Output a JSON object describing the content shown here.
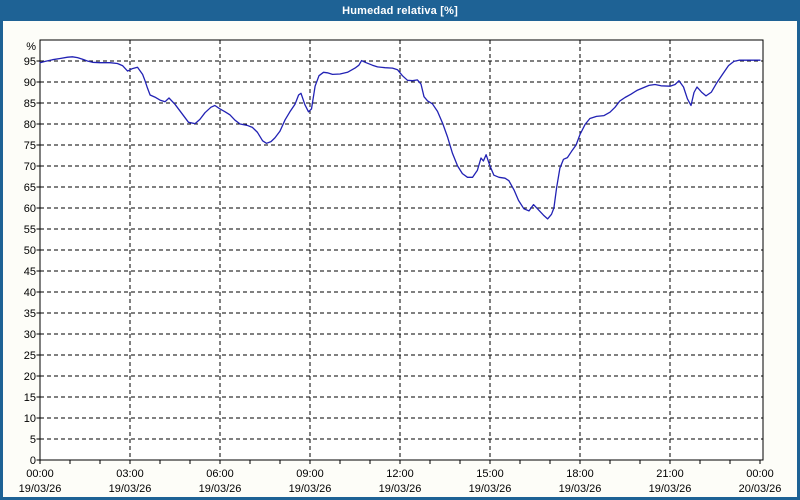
{
  "window": {
    "title": "Humedad relativa [%]",
    "title_bar_color": "#1e6295",
    "border_color": "#1e6295",
    "content_bg": "#fdfdf8"
  },
  "chart_data": {
    "type": "line",
    "title": "Humedad relativa [%]",
    "plot_bg": "#ffffff",
    "grid": {
      "dashed": true,
      "color": "#000000",
      "legend": "none"
    },
    "y_axis": {
      "unit_label": "%",
      "min": 0,
      "max": 100,
      "step": 5,
      "labeled_ticks": [
        0,
        5,
        10,
        15,
        20,
        25,
        30,
        35,
        40,
        45,
        50,
        55,
        60,
        65,
        70,
        75,
        80,
        85,
        90,
        95
      ]
    },
    "x_axis": {
      "range_hours": [
        0,
        24
      ],
      "minor_tick_hours": 1,
      "ticks": [
        {
          "t": 0,
          "time": "00:00",
          "date": "19/03/26"
        },
        {
          "t": 3,
          "time": "03:00",
          "date": "19/03/26"
        },
        {
          "t": 6,
          "time": "06:00",
          "date": "19/03/26"
        },
        {
          "t": 9,
          "time": "09:00",
          "date": "19/03/26"
        },
        {
          "t": 12,
          "time": "12:00",
          "date": "19/03/26"
        },
        {
          "t": 15,
          "time": "15:00",
          "date": "19/03/26"
        },
        {
          "t": 18,
          "time": "18:00",
          "date": "19/03/26"
        },
        {
          "t": 21,
          "time": "21:00",
          "date": "19/03/26"
        },
        {
          "t": 24,
          "time": "00:00",
          "date": "20/03/26"
        }
      ],
      "vertical_gridlines_hours": [
        3,
        6,
        9,
        12,
        15,
        18,
        21
      ]
    },
    "series": [
      {
        "name": "Humedad relativa",
        "color": "#2222b4",
        "points": [
          [
            0,
            94.6
          ],
          [
            0.17,
            94.9
          ],
          [
            0.42,
            95.3
          ],
          [
            0.67,
            95.6
          ],
          [
            0.92,
            95.9
          ],
          [
            1.08,
            96
          ],
          [
            1.25,
            95.8
          ],
          [
            1.42,
            95.4
          ],
          [
            1.58,
            95
          ],
          [
            1.75,
            94.7
          ],
          [
            2,
            94.6
          ],
          [
            2.33,
            94.6
          ],
          [
            2.58,
            94.4
          ],
          [
            2.75,
            93.9
          ],
          [
            2.92,
            92.6
          ],
          [
            3.08,
            93.2
          ],
          [
            3.25,
            93.5
          ],
          [
            3.42,
            91.8
          ],
          [
            3.5,
            90.3
          ],
          [
            3.58,
            88.6
          ],
          [
            3.67,
            86.9
          ],
          [
            3.83,
            86.4
          ],
          [
            4,
            85.7
          ],
          [
            4.17,
            85.3
          ],
          [
            4.3,
            86.2
          ],
          [
            4.5,
            84.7
          ],
          [
            4.75,
            82.3
          ],
          [
            4.95,
            80.4
          ],
          [
            5.17,
            80.1
          ],
          [
            5.33,
            81.1
          ],
          [
            5.5,
            82.7
          ],
          [
            5.7,
            84
          ],
          [
            5.83,
            84.4
          ],
          [
            6,
            83.6
          ],
          [
            6.17,
            82.9
          ],
          [
            6.33,
            82.2
          ],
          [
            6.5,
            80.9
          ],
          [
            6.67,
            80
          ],
          [
            6.9,
            79.7
          ],
          [
            7.08,
            79.2
          ],
          [
            7.25,
            78
          ],
          [
            7.42,
            76
          ],
          [
            7.55,
            75.4
          ],
          [
            7.7,
            75.8
          ],
          [
            7.83,
            76.7
          ],
          [
            8,
            78.3
          ],
          [
            8.17,
            81
          ],
          [
            8.33,
            82.9
          ],
          [
            8.5,
            84.7
          ],
          [
            8.62,
            86.9
          ],
          [
            8.7,
            87.3
          ],
          [
            8.83,
            84.6
          ],
          [
            8.95,
            82.9
          ],
          [
            9.05,
            83.6
          ],
          [
            9.17,
            89
          ],
          [
            9.3,
            91.5
          ],
          [
            9.45,
            92.3
          ],
          [
            9.58,
            92.2
          ],
          [
            9.75,
            91.8
          ],
          [
            10,
            91.9
          ],
          [
            10.25,
            92.3
          ],
          [
            10.5,
            93.3
          ],
          [
            10.63,
            94
          ],
          [
            10.72,
            95.1
          ],
          [
            10.87,
            94.6
          ],
          [
            11.08,
            94
          ],
          [
            11.25,
            93.6
          ],
          [
            11.5,
            93.4
          ],
          [
            11.75,
            93.3
          ],
          [
            11.92,
            92.9
          ],
          [
            12.08,
            91.5
          ],
          [
            12.25,
            90.4
          ],
          [
            12.42,
            90.3
          ],
          [
            12.58,
            90.5
          ],
          [
            12.7,
            89.5
          ],
          [
            12.8,
            86.5
          ],
          [
            12.92,
            85.5
          ],
          [
            13.08,
            84.8
          ],
          [
            13.25,
            83
          ],
          [
            13.42,
            80.2
          ],
          [
            13.58,
            77
          ],
          [
            13.75,
            73
          ],
          [
            13.92,
            70
          ],
          [
            14.08,
            68.2
          ],
          [
            14.25,
            67.3
          ],
          [
            14.42,
            67.3
          ],
          [
            14.58,
            69
          ],
          [
            14.7,
            71.9
          ],
          [
            14.78,
            71.2
          ],
          [
            14.87,
            72.7
          ],
          [
            15,
            70
          ],
          [
            15.13,
            67.8
          ],
          [
            15.3,
            67.3
          ],
          [
            15.5,
            67.1
          ],
          [
            15.63,
            66.5
          ],
          [
            15.8,
            64.3
          ],
          [
            15.95,
            61.8
          ],
          [
            16.13,
            59.8
          ],
          [
            16.3,
            59.3
          ],
          [
            16.45,
            60.8
          ],
          [
            16.6,
            59.7
          ],
          [
            16.78,
            58.3
          ],
          [
            16.92,
            57.4
          ],
          [
            17.05,
            58.5
          ],
          [
            17.13,
            60
          ],
          [
            17.22,
            64.8
          ],
          [
            17.33,
            69.5
          ],
          [
            17.45,
            71.6
          ],
          [
            17.58,
            72
          ],
          [
            17.72,
            73.5
          ],
          [
            17.87,
            75
          ],
          [
            18,
            77.5
          ],
          [
            18.17,
            79.9
          ],
          [
            18.33,
            81.3
          ],
          [
            18.55,
            81.8
          ],
          [
            18.8,
            82
          ],
          [
            19,
            82.8
          ],
          [
            19.17,
            84
          ],
          [
            19.33,
            85.5
          ],
          [
            19.5,
            86.3
          ],
          [
            19.7,
            87.1
          ],
          [
            19.9,
            88
          ],
          [
            20.1,
            88.6
          ],
          [
            20.3,
            89.2
          ],
          [
            20.5,
            89.4
          ],
          [
            20.7,
            89.1
          ],
          [
            21,
            89
          ],
          [
            21.17,
            89.4
          ],
          [
            21.3,
            90.3
          ],
          [
            21.45,
            88.8
          ],
          [
            21.58,
            86
          ],
          [
            21.7,
            84.4
          ],
          [
            21.8,
            87.5
          ],
          [
            21.9,
            88.8
          ],
          [
            22.05,
            87.6
          ],
          [
            22.2,
            86.7
          ],
          [
            22.38,
            87.6
          ],
          [
            22.55,
            89.7
          ],
          [
            22.75,
            91.8
          ],
          [
            22.95,
            93.9
          ],
          [
            23.13,
            94.9
          ],
          [
            23.3,
            95.2
          ],
          [
            23.6,
            95.2
          ],
          [
            24,
            95.2
          ]
        ]
      }
    ]
  }
}
